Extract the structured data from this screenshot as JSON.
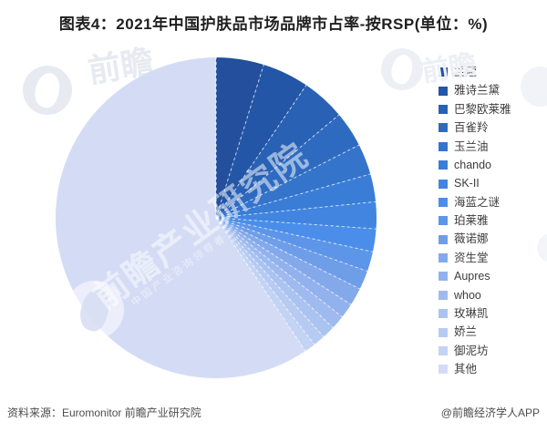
{
  "title": "图表4：2021年中国护肤品市场品牌市占率-按RSP(单位：%)",
  "footer": {
    "source": "资料来源：Euromonitor 前瞻产业研究院",
    "credit": "@前瞻经济学人APP"
  },
  "watermark": {
    "brand": "前瞻",
    "center_text": "前瞻产业研究院",
    "center_subtext": "中国产业咨询领导者"
  },
  "chart_data": {
    "type": "pie",
    "title": "2021年中国护肤品市场品牌市占率-按RSP",
    "unit": "%",
    "values_estimated": true,
    "start_angle_deg": 0,
    "direction": "clockwise",
    "legend_position": "right",
    "categories": [
      "兰蔻",
      "雅诗兰黛",
      "巴黎欧莱雅",
      "百雀羚",
      "玉兰油",
      "chando",
      "SK-II",
      "海蓝之谜",
      "珀莱雅",
      "薇诺娜",
      "资生堂",
      "Aupres",
      "whoo",
      "玫琳凯",
      "娇兰",
      "御泥坊",
      "其他"
    ],
    "values": [
      4.8,
      4.7,
      4.4,
      3.6,
      3.1,
      2.8,
      2.7,
      2.3,
      2.0,
      1.9,
      1.8,
      1.5,
      1.4,
      1.3,
      1.2,
      1.1,
      59.4
    ],
    "colors": [
      "#234f9c",
      "#2356a7",
      "#2961b4",
      "#2e6bc0",
      "#3474cb",
      "#3a7dd6",
      "#4185e0",
      "#4a8eea",
      "#5d95e8",
      "#6f9ee9",
      "#84a9eb",
      "#92b2ed",
      "#9fbaef",
      "#abc3f0",
      "#b7cbf2",
      "#c2d3f3",
      "#d4dcf5"
    ],
    "separator_color": "rgba(255,255,255,0.75)"
  }
}
